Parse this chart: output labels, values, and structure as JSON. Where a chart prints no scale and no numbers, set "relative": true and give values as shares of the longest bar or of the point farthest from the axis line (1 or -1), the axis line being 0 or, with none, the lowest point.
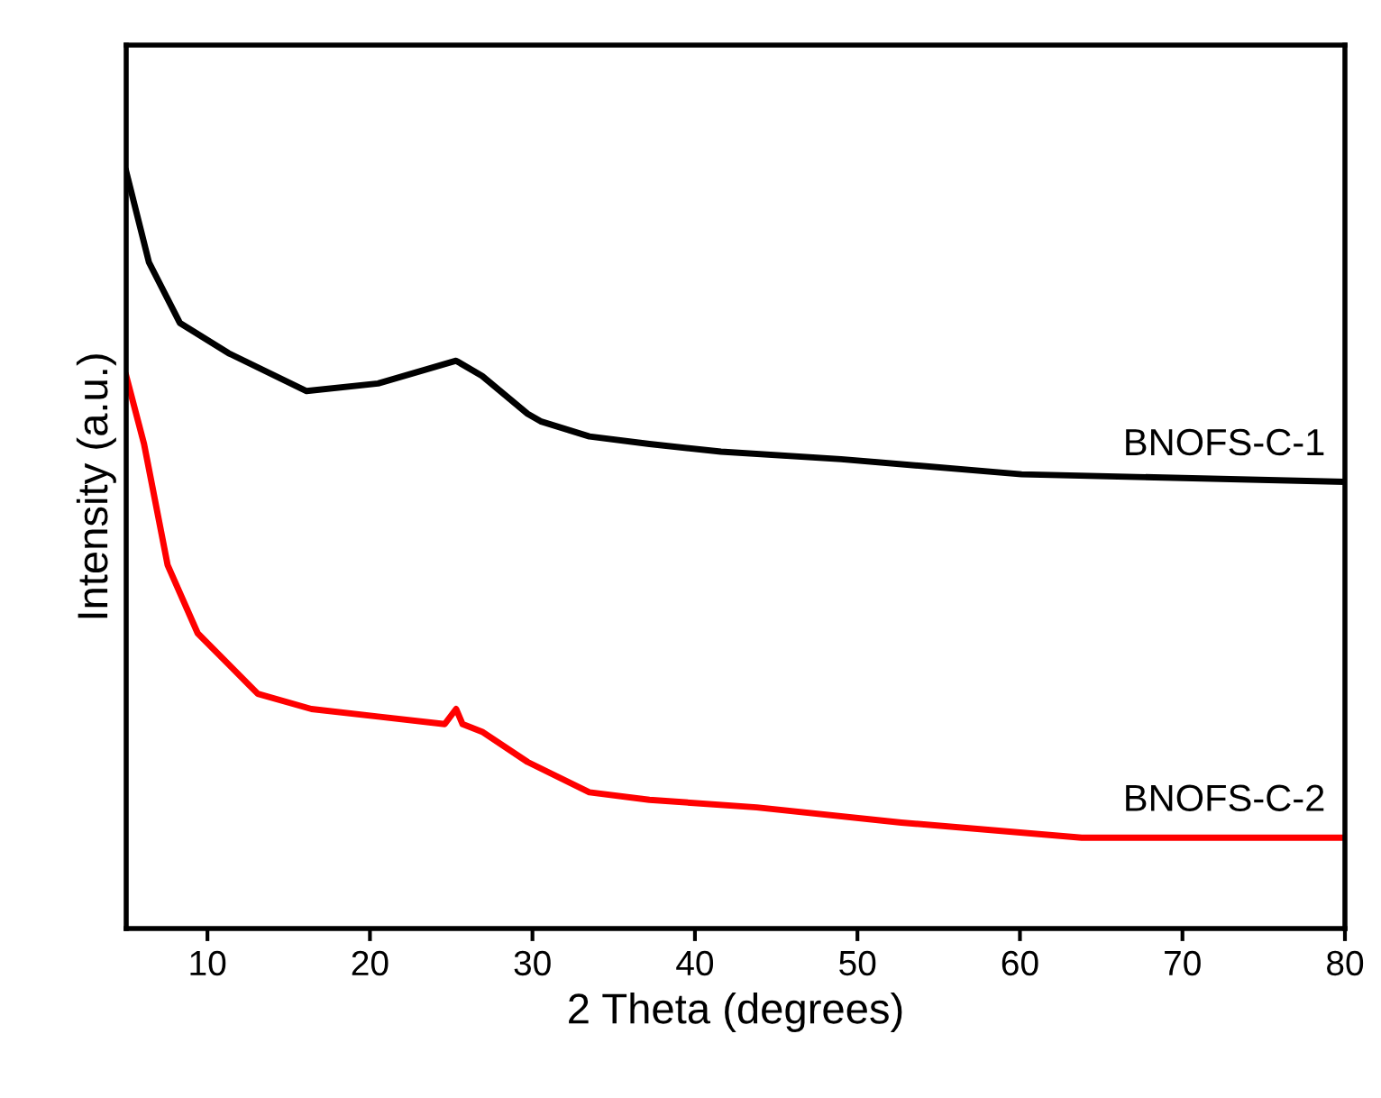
{
  "chart_data": {
    "type": "line",
    "relative": true,
    "xlabel": "2 Theta (degrees)",
    "ylabel": "Intensity (a.u.)",
    "xlim": [
      5,
      80
    ],
    "xticks": [
      10,
      20,
      30,
      40,
      50,
      60,
      70,
      80
    ],
    "grid": false,
    "tick_labels": "x",
    "series": [
      {
        "name": "BNOFS-C-1",
        "color": "#000000",
        "x": [
          5,
          6.4,
          8.3,
          11.3,
          16.1,
          20.5,
          25.3,
          26.9,
          29.7,
          30.5,
          33.5,
          37.2,
          41.6,
          49,
          60.1,
          80
        ],
        "values": [
          1.0,
          0.88,
          0.8,
          0.76,
          0.71,
          0.72,
          0.75,
          0.73,
          0.68,
          0.67,
          0.65,
          0.64,
          0.63,
          0.62,
          0.6,
          0.59
        ]
      },
      {
        "name": "BNOFS-C-2",
        "color": "#ff0000",
        "x": [
          5,
          6.1,
          7.55,
          9.4,
          13.1,
          16.4,
          20.5,
          24.6,
          25.3,
          25.7,
          26.9,
          29.7,
          33.5,
          37.2,
          43.8,
          52.7,
          63.8,
          80
        ],
        "values": [
          0.73,
          0.64,
          0.48,
          0.39,
          0.31,
          0.29,
          0.28,
          0.27,
          0.29,
          0.27,
          0.26,
          0.22,
          0.18,
          0.17,
          0.16,
          0.14,
          0.12,
          0.12
        ]
      }
    ]
  }
}
